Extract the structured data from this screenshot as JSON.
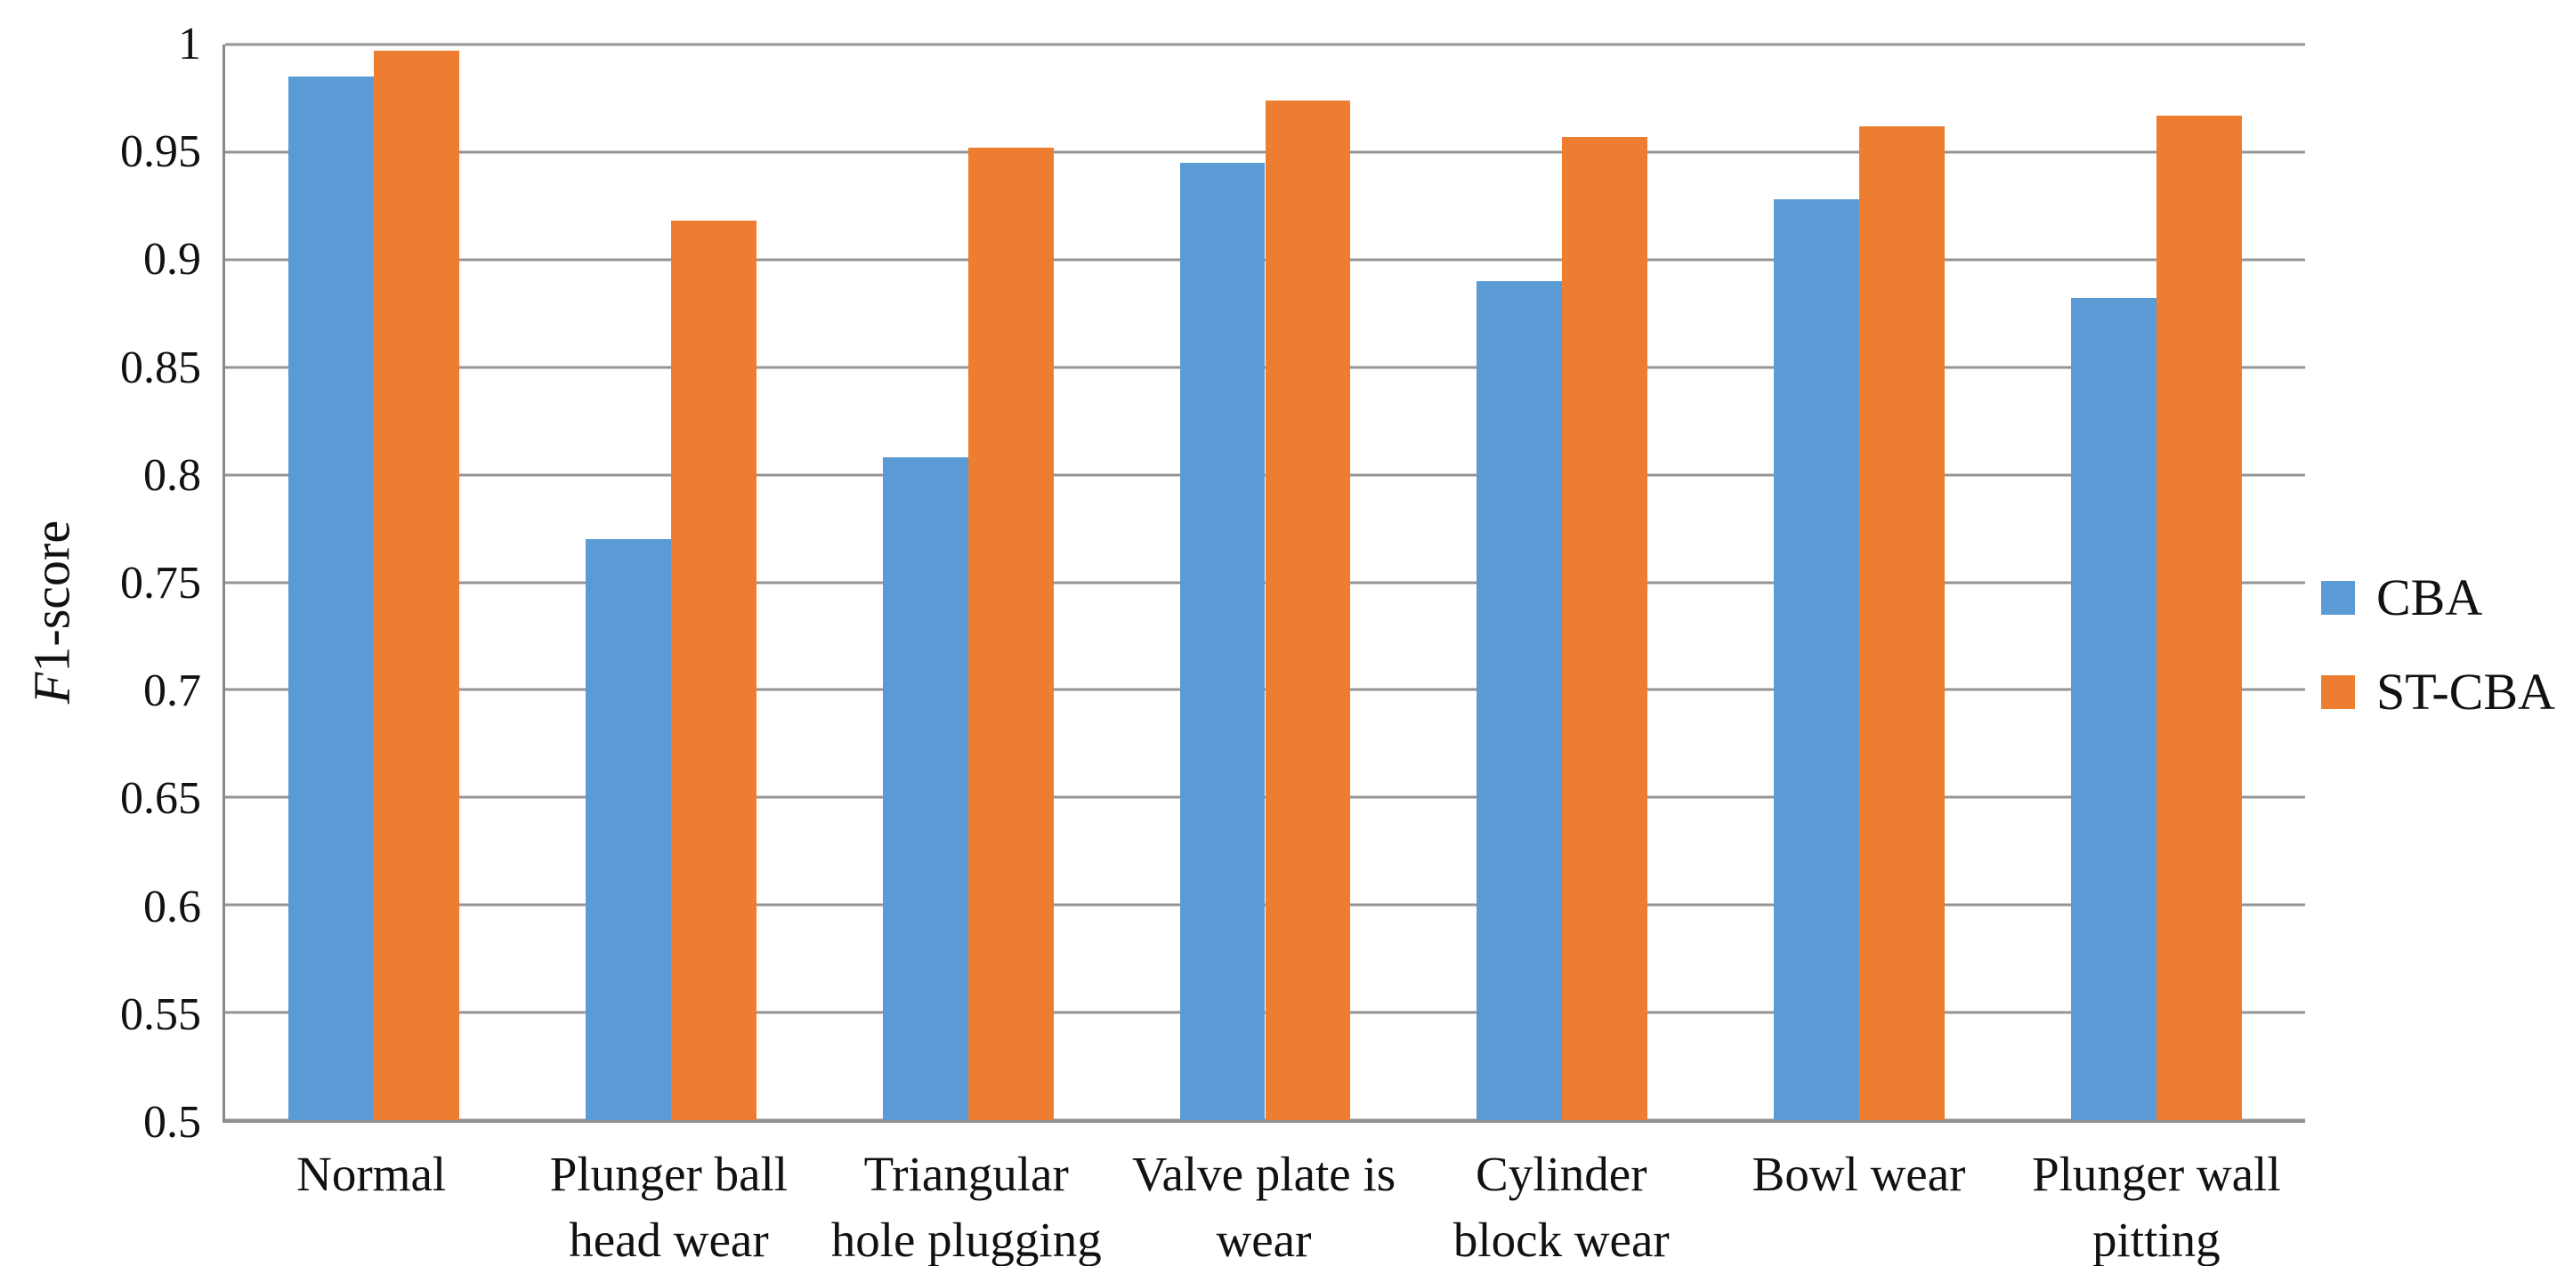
{
  "figure": {
    "background": "#ffffff",
    "text_color": "#111111",
    "gridline_color": "#949494",
    "axis_line_color": "#898989",
    "y_axis_title_italic_part": "F",
    "y_axis_title_rest_part": "1-score"
  },
  "chart_data": {
    "type": "bar",
    "title": "",
    "xlabel": "",
    "ylabel": "F1-score",
    "ylim": [
      0.5,
      1.0
    ],
    "ytick_step": 0.05,
    "yticks": [
      "1",
      "0.95",
      "0.9",
      "0.85",
      "0.8",
      "0.75",
      "0.7",
      "0.65",
      "0.6",
      "0.55",
      "0.5"
    ],
    "grid": true,
    "legend_position": "right",
    "bar_width_pct": 4.103,
    "categories": [
      "Normal",
      "Plunger ball head wear",
      "Triangular hole plugging",
      "Valve plate is wear",
      "Cylinder block wear",
      "Bowl wear",
      "Plunger wall pitting"
    ],
    "category_lines": [
      [
        "Normal"
      ],
      [
        "Plunger ball",
        "head wear"
      ],
      [
        "Triangular",
        "hole plugging"
      ],
      [
        "Valve plate is",
        "wear"
      ],
      [
        "Cylinder",
        "block wear"
      ],
      [
        "Bowl wear"
      ],
      [
        "Plunger wall",
        "pitting"
      ]
    ],
    "series": [
      {
        "name": "CBA",
        "color": "#5B9BD5",
        "values": [
          0.985,
          0.77,
          0.808,
          0.945,
          0.89,
          0.928,
          0.882
        ]
      },
      {
        "name": "ST-CBA",
        "color": "#ED7D31",
        "values": [
          0.997,
          0.918,
          0.952,
          0.974,
          0.957,
          0.962,
          0.967
        ]
      }
    ]
  }
}
